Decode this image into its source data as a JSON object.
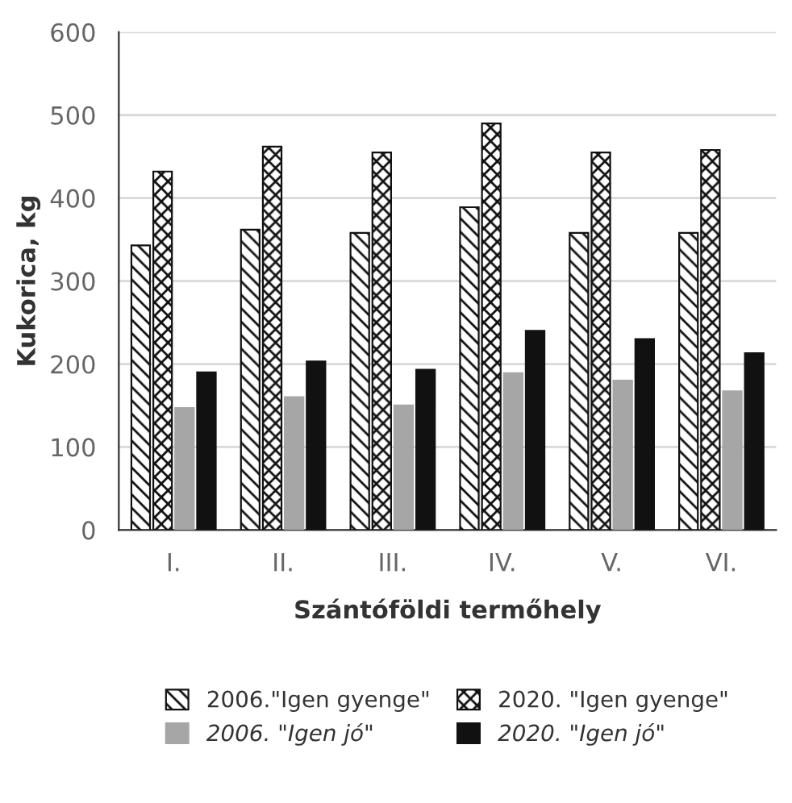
{
  "chart_data": {
    "type": "bar",
    "xlabel": "Szántóföldi termőhely",
    "ylabel": "Kukorica, kg",
    "categories": [
      "I.",
      "II.",
      "III.",
      "IV.",
      "V.",
      "VI."
    ],
    "series": [
      {
        "name": "2006.\"Igen gyenge\"",
        "color": "#111111",
        "values": [
          343,
          362,
          358,
          389,
          358,
          358
        ]
      },
      {
        "name": "2020. \"Igen gyenge\"",
        "color": "#111111",
        "values": [
          432,
          462,
          455,
          490,
          455,
          458
        ]
      },
      {
        "name": "2006. \"Igen jó\"",
        "color": "#a6a6a6",
        "values": [
          147,
          160,
          150,
          189,
          180,
          167
        ]
      },
      {
        "name": "2020. \"Igen jó\"",
        "color": "#111111",
        "values": [
          190,
          203,
          193,
          240,
          230,
          213
        ]
      }
    ],
    "ylim": [
      0,
      600
    ],
    "yticks": [
      0,
      100,
      200,
      300,
      400,
      500,
      600
    ],
    "grid": "y",
    "legend": "bottom"
  }
}
